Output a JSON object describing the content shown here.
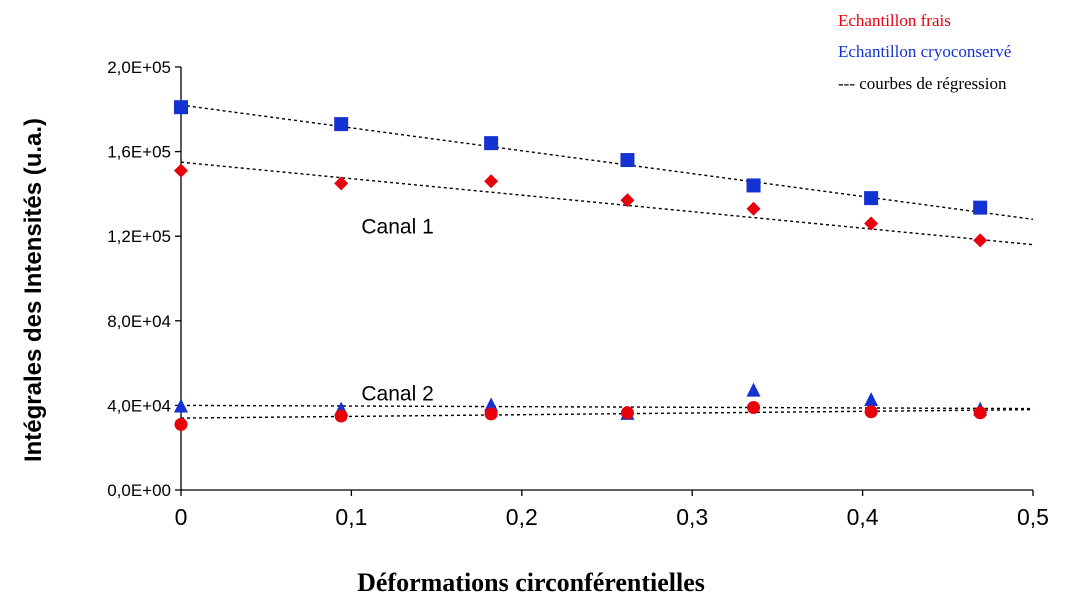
{
  "chart_data": {
    "type": "scatter",
    "xlabel": "Déformations circonférentielles",
    "ylabel": "Intégrales des Intensités (u.a.)",
    "xlim": [
      0,
      0.5
    ],
    "ylim": [
      0,
      200000
    ],
    "x_ticks": [
      0,
      0.1,
      0.2,
      0.3,
      0.4,
      0.5
    ],
    "x_tick_labels": [
      "0",
      "0,1",
      "0,2",
      "0,3",
      "0,4",
      "0,5"
    ],
    "y_ticks": [
      0,
      40000,
      80000,
      120000,
      160000,
      200000
    ],
    "y_tick_labels": [
      "0,0E+00",
      "4,0E+04",
      "8,0E+04",
      "1,2E+05",
      "1,6E+05",
      "2,0E+05"
    ],
    "grid": false,
    "legend_position": "top-right",
    "legend": [
      {
        "label": "Echantillon frais",
        "color": "#e8000b"
      },
      {
        "label": "Echantillon cryoconservé",
        "color": "#1432d2"
      },
      {
        "label": "--- courbes de régression",
        "color": "#000000"
      }
    ],
    "annotations": [
      {
        "text": "Canal 1",
        "x": 0.1,
        "y": 125000
      },
      {
        "text": "Canal 2",
        "x": 0.1,
        "y": 46000
      }
    ],
    "series": [
      {
        "marker": "square",
        "color": "#1432d2",
        "x": [
          0,
          0.094,
          0.182,
          0.262,
          0.336,
          0.405,
          0.469
        ],
        "y": [
          181000,
          173000,
          164000,
          156000,
          144000,
          138000,
          133500
        ]
      },
      {
        "marker": "diamond",
        "color": "#e8000b",
        "x": [
          0,
          0.094,
          0.182,
          0.262,
          0.336,
          0.405,
          0.469
        ],
        "y": [
          151000,
          145000,
          146000,
          137000,
          133000,
          126000,
          118000
        ]
      },
      {
        "marker": "triangle",
        "color": "#1432d2",
        "x": [
          0,
          0.094,
          0.182,
          0.262,
          0.336,
          0.405,
          0.469
        ],
        "y": [
          39500,
          38000,
          40000,
          36000,
          47000,
          42500,
          38000
        ]
      },
      {
        "marker": "circle",
        "color": "#e8000b",
        "x": [
          0,
          0.094,
          0.182,
          0.262,
          0.336,
          0.405,
          0.469
        ],
        "y": [
          31000,
          35000,
          36000,
          36500,
          39000,
          37000,
          36500
        ]
      }
    ],
    "regression_lines": [
      {
        "x": [
          0,
          0.5
        ],
        "y": [
          182000,
          128000
        ]
      },
      {
        "x": [
          0,
          0.5
        ],
        "y": [
          155000,
          116000
        ]
      },
      {
        "x": [
          0,
          0.5
        ],
        "y": [
          40000,
          38500
        ]
      },
      {
        "x": [
          0,
          0.5
        ],
        "y": [
          34000,
          38000
        ]
      }
    ]
  }
}
